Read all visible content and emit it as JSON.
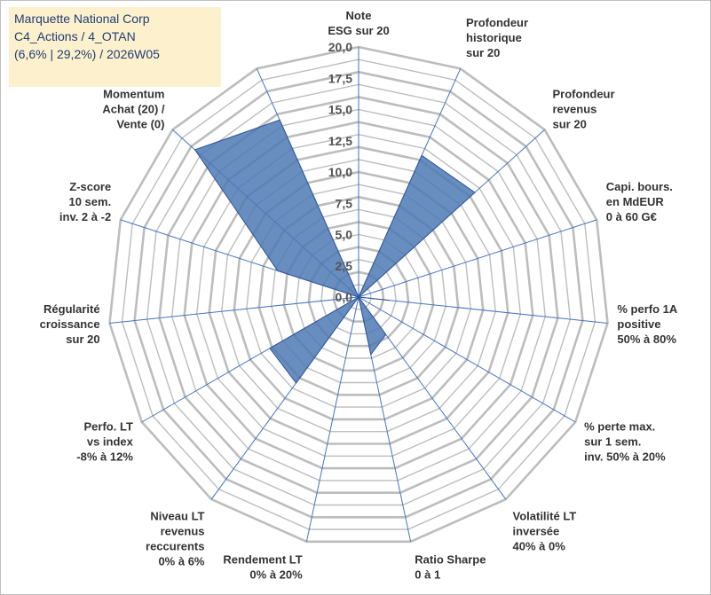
{
  "title_box": {
    "lines": [
      "Marquette National Corp",
      "C4_Actions / 4_OTAN",
      "(6,6% | 29,2%) / 2026W05"
    ]
  },
  "colors": {
    "grid": "#bdbdbd",
    "spoke": "#4472c4",
    "fill": "#4d79b4",
    "stroke": "#2f5597",
    "title_bg": "#fdf0cc",
    "title_text": "#1f3e74"
  },
  "chart_data": {
    "type": "radar",
    "rmax": 20,
    "ticks": [
      "0,0",
      "2,5",
      "5,0",
      "7,5",
      "10,0",
      "12,5",
      "15,0",
      "17,5",
      "20,0"
    ],
    "axes": [
      {
        "label": [
          "Note",
          "ESG sur 20"
        ],
        "value": 0
      },
      {
        "label": [
          "Profondeur",
          "historique",
          "sur 20"
        ],
        "value": 12.4
      },
      {
        "label": [
          "Profondeur",
          "revenus",
          "sur 20"
        ],
        "value": 12.5
      },
      {
        "label": [
          "Capi. bours.",
          "en MdEUR",
          "0 à 60 G€"
        ],
        "value": 0
      },
      {
        "label": [
          "% perfo 1A",
          "positive",
          "50% à 80%"
        ],
        "value": 2.5
      },
      {
        "label": [
          "% perte max.",
          "sur 1 sem.",
          "inv. 50% à 20%"
        ],
        "value": 0
      },
      {
        "label": [
          "Volatilité LT",
          "inversée",
          "40% à 0%"
        ],
        "value": 3.7
      },
      {
        "label": [
          "Ratio Sharpe",
          "0 à 1"
        ],
        "value": 4.7
      },
      {
        "label": [
          "Rendement LT",
          "0% à 20%"
        ],
        "value": 0
      },
      {
        "label": [
          "Niveau LT",
          "revenus",
          "reccurents",
          "0% à 6%"
        ],
        "value": 8.5
      },
      {
        "label": [
          "Perfo. LT",
          "vs index",
          "-8% à 12%"
        ],
        "value": 8.2
      },
      {
        "label": [
          "Régularité",
          "croissance",
          "sur 20"
        ],
        "value": 0
      },
      {
        "label": [
          "Z-score",
          "10 sem.",
          "inv. 2 à -2"
        ],
        "value": 6.8
      },
      {
        "label": [
          "Momentum",
          "Achat (20) /",
          "Vente (0)"
        ],
        "value": 17.6
      },
      {
        "label": [],
        "value": 15.5
      }
    ]
  }
}
